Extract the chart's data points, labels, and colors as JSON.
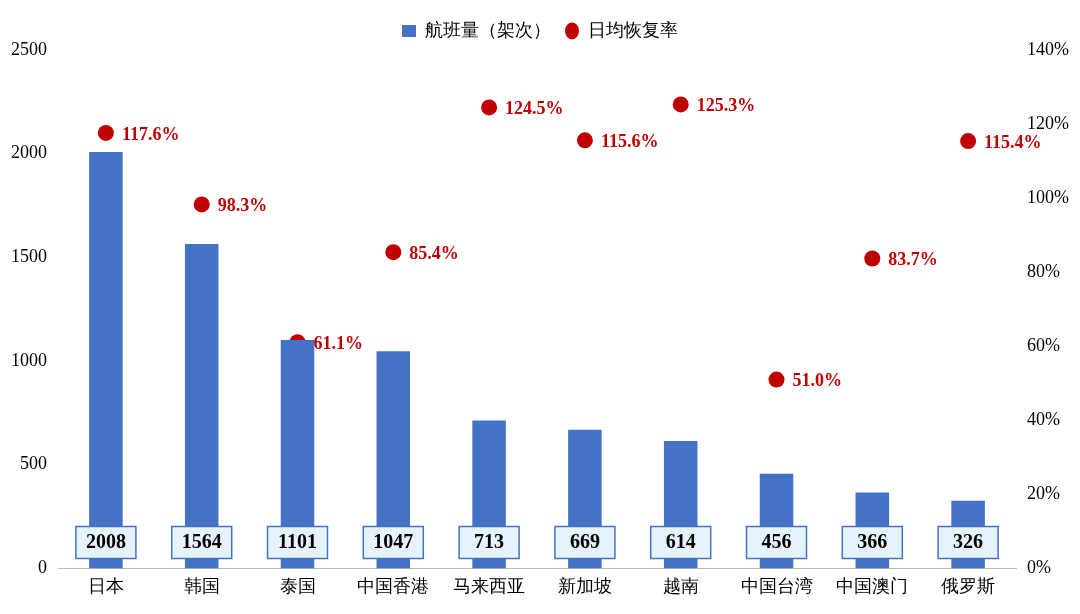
{
  "chart_data": {
    "type": "bar",
    "categories": [
      "日本",
      "韩国",
      "泰国",
      "中国香港",
      "马来西亚",
      "新加坡",
      "越南",
      "中国台湾",
      "中国澳门",
      "俄罗斯"
    ],
    "series": [
      {
        "name": "航班量（架次）",
        "color": "#4472c4",
        "values": [
          2008,
          1564,
          1101,
          1047,
          713,
          669,
          614,
          456,
          366,
          326
        ]
      },
      {
        "name": "日均恢复率",
        "type": "scatter",
        "axis": "y2",
        "color": "#c00000",
        "marker": "circle",
        "values": [
          117.6,
          98.3,
          61.1,
          85.4,
          124.5,
          115.6,
          125.3,
          51.0,
          83.7,
          115.4
        ],
        "value_labels": [
          "117.6%",
          "98.3%",
          "61.1%",
          "85.4%",
          "124.5%",
          "115.6%",
          "125.3%",
          "51.0%",
          "83.7%",
          "115.4%"
        ]
      }
    ],
    "data_labels": true,
    "ylim": [
      0,
      2500
    ],
    "yticks": [
      0,
      500,
      1000,
      1500,
      2000,
      2500
    ],
    "y2lim": [
      0,
      140
    ],
    "y2ticks": [
      {
        "value": 0,
        "label": "0%"
      },
      {
        "value": 20,
        "label": "20%"
      },
      {
        "value": 40,
        "label": "40%"
      },
      {
        "value": 60,
        "label": "60%"
      },
      {
        "value": 80,
        "label": "80%"
      },
      {
        "value": 100,
        "label": "100%"
      },
      {
        "value": 120,
        "label": "120%"
      },
      {
        "value": 140,
        "label": "140%"
      }
    ],
    "legend": "top",
    "grid": false
  }
}
